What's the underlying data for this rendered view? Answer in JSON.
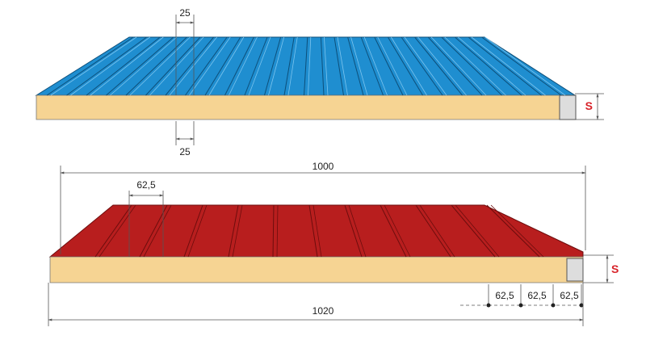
{
  "top_panel": {
    "rib_pitch_top": "25",
    "rib_pitch_bottom": "25",
    "thickness": "S"
  },
  "bottom_panel": {
    "width_overall": "1000",
    "rib_pitch": "62,5",
    "thickness": "S",
    "bottom_pitch": [
      "62,5",
      "62,5",
      "62,5"
    ],
    "width_total": "1020"
  }
}
